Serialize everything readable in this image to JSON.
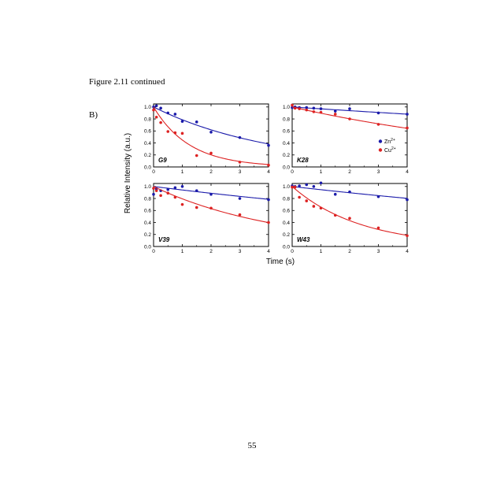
{
  "page": {
    "caption": "Figure 2.11 continued",
    "section_label": "B)",
    "page_number": "55"
  },
  "chart_data": [
    {
      "type": "scatter",
      "panel_label": "G9",
      "xlim": [
        0,
        4
      ],
      "ylim": [
        0,
        1.05
      ],
      "xticks": [
        "0",
        "1",
        "2",
        "3",
        "4"
      ],
      "yticks": [
        "0.0",
        "0.2",
        "0.4",
        "0.6",
        "0.8",
        "1.0"
      ],
      "series": [
        {
          "name": "Zn2+",
          "color": "#1a1aaa",
          "points": [
            [
              0,
              1.0
            ],
            [
              0.1,
              1.02
            ],
            [
              0.25,
              0.98
            ],
            [
              0.5,
              0.9
            ],
            [
              0.75,
              0.88
            ],
            [
              1,
              0.76
            ],
            [
              1.5,
              0.75
            ],
            [
              2,
              0.58
            ],
            [
              3,
              0.49
            ],
            [
              4,
              0.36
            ]
          ],
          "fit": {
            "a": 1.0,
            "k": 0.24
          }
        },
        {
          "name": "Cu2+",
          "color": "#dd2222",
          "points": [
            [
              0,
              0.95
            ],
            [
              0.1,
              0.83
            ],
            [
              0.25,
              0.74
            ],
            [
              0.5,
              0.59
            ],
            [
              0.75,
              0.57
            ],
            [
              1,
              0.56
            ],
            [
              1.5,
              0.19
            ],
            [
              2,
              0.23
            ],
            [
              3,
              0.08
            ],
            [
              4,
              0.03
            ]
          ],
          "fit": {
            "a": 1.0,
            "k": 0.8
          }
        }
      ]
    },
    {
      "type": "scatter",
      "panel_label": "K28",
      "xlim": [
        0,
        4
      ],
      "ylim": [
        0,
        1.05
      ],
      "xticks": [
        "0",
        "1",
        "2",
        "3",
        "4"
      ],
      "yticks": [
        "0.0",
        "0.2",
        "0.4",
        "0.6",
        "0.8",
        "1.0"
      ],
      "legend": [
        {
          "label": "Zn",
          "sup": "2+",
          "color": "#1a1aaa"
        },
        {
          "label": "Cu",
          "sup": "2+",
          "color": "#dd2222"
        }
      ],
      "series": [
        {
          "name": "Zn2+",
          "color": "#1a1aaa",
          "points": [
            [
              0,
              0.99
            ],
            [
              0.1,
              1.0
            ],
            [
              0.25,
              0.99
            ],
            [
              0.5,
              0.99
            ],
            [
              0.75,
              0.98
            ],
            [
              1,
              0.97
            ],
            [
              1.5,
              0.93
            ],
            [
              2,
              0.97
            ],
            [
              3,
              0.9
            ],
            [
              4,
              0.88
            ]
          ],
          "fit": {
            "a": 1.0,
            "k": 0.032
          }
        },
        {
          "name": "Cu2+",
          "color": "#dd2222",
          "points": [
            [
              0,
              1.03
            ],
            [
              0.1,
              0.98
            ],
            [
              0.25,
              0.97
            ],
            [
              0.5,
              0.95
            ],
            [
              0.75,
              0.92
            ],
            [
              1,
              0.91
            ],
            [
              1.5,
              0.88
            ],
            [
              2,
              0.8
            ],
            [
              3,
              0.71
            ],
            [
              4,
              0.65
            ]
          ],
          "fit": {
            "a": 1.0,
            "k": 0.11
          }
        }
      ]
    },
    {
      "type": "scatter",
      "panel_label": "V39",
      "xlim": [
        0,
        4
      ],
      "ylim": [
        0,
        1.05
      ],
      "xticks": [
        "0",
        "1",
        "2",
        "3",
        "4"
      ],
      "yticks": [
        "0.0",
        "0.2",
        "0.4",
        "0.6",
        "0.8",
        "1.0"
      ],
      "series": [
        {
          "name": "Zn2+",
          "color": "#1a1aaa",
          "points": [
            [
              0,
              0.87
            ],
            [
              0.1,
              0.96
            ],
            [
              0.25,
              0.93
            ],
            [
              0.5,
              0.95
            ],
            [
              0.75,
              0.98
            ],
            [
              1,
              1.0
            ],
            [
              1.5,
              0.93
            ],
            [
              2,
              0.87
            ],
            [
              3,
              0.8
            ],
            [
              4,
              0.78
            ]
          ],
          "fit": {
            "a": 1.0,
            "k": 0.06
          }
        },
        {
          "name": "Cu2+",
          "color": "#dd2222",
          "points": [
            [
              0,
              0.97
            ],
            [
              0.1,
              0.93
            ],
            [
              0.25,
              0.85
            ],
            [
              0.5,
              0.89
            ],
            [
              0.75,
              0.82
            ],
            [
              1,
              0.7
            ],
            [
              1.5,
              0.65
            ],
            [
              2,
              0.64
            ],
            [
              3,
              0.53
            ],
            [
              4,
              0.4
            ]
          ],
          "fit": {
            "a": 1.0,
            "k": 0.23
          }
        }
      ]
    },
    {
      "type": "scatter",
      "panel_label": "W43",
      "xlim": [
        0,
        4
      ],
      "ylim": [
        0,
        1.05
      ],
      "xticks": [
        "0",
        "1",
        "2",
        "3",
        "4"
      ],
      "yticks": [
        "0.0",
        "0.2",
        "0.4",
        "0.6",
        "0.8",
        "1.0"
      ],
      "series": [
        {
          "name": "Zn2+",
          "color": "#1a1aaa",
          "points": [
            [
              0,
              1.01
            ],
            [
              0.1,
              1.0
            ],
            [
              0.25,
              1.01
            ],
            [
              0.5,
              1.03
            ],
            [
              0.75,
              1.0
            ],
            [
              1,
              1.06
            ],
            [
              1.5,
              0.87
            ],
            [
              2,
              0.91
            ],
            [
              3,
              0.83
            ],
            [
              4,
              0.78
            ]
          ],
          "fit": {
            "a": 1.0,
            "k": 0.055
          }
        },
        {
          "name": "Cu2+",
          "color": "#dd2222",
          "points": [
            [
              0,
              0.99
            ],
            [
              0.1,
              0.99
            ],
            [
              0.25,
              0.82
            ],
            [
              0.5,
              0.76
            ],
            [
              0.75,
              0.67
            ],
            [
              1,
              0.64
            ],
            [
              1.5,
              0.52
            ],
            [
              2,
              0.47
            ],
            [
              3,
              0.31
            ],
            [
              4,
              0.18
            ]
          ],
          "fit": {
            "a": 1.0,
            "k": 0.42
          }
        }
      ]
    }
  ],
  "axes": {
    "ylabel": "Relative Intensity (a.u.)",
    "xlabel": "Time (s)"
  }
}
